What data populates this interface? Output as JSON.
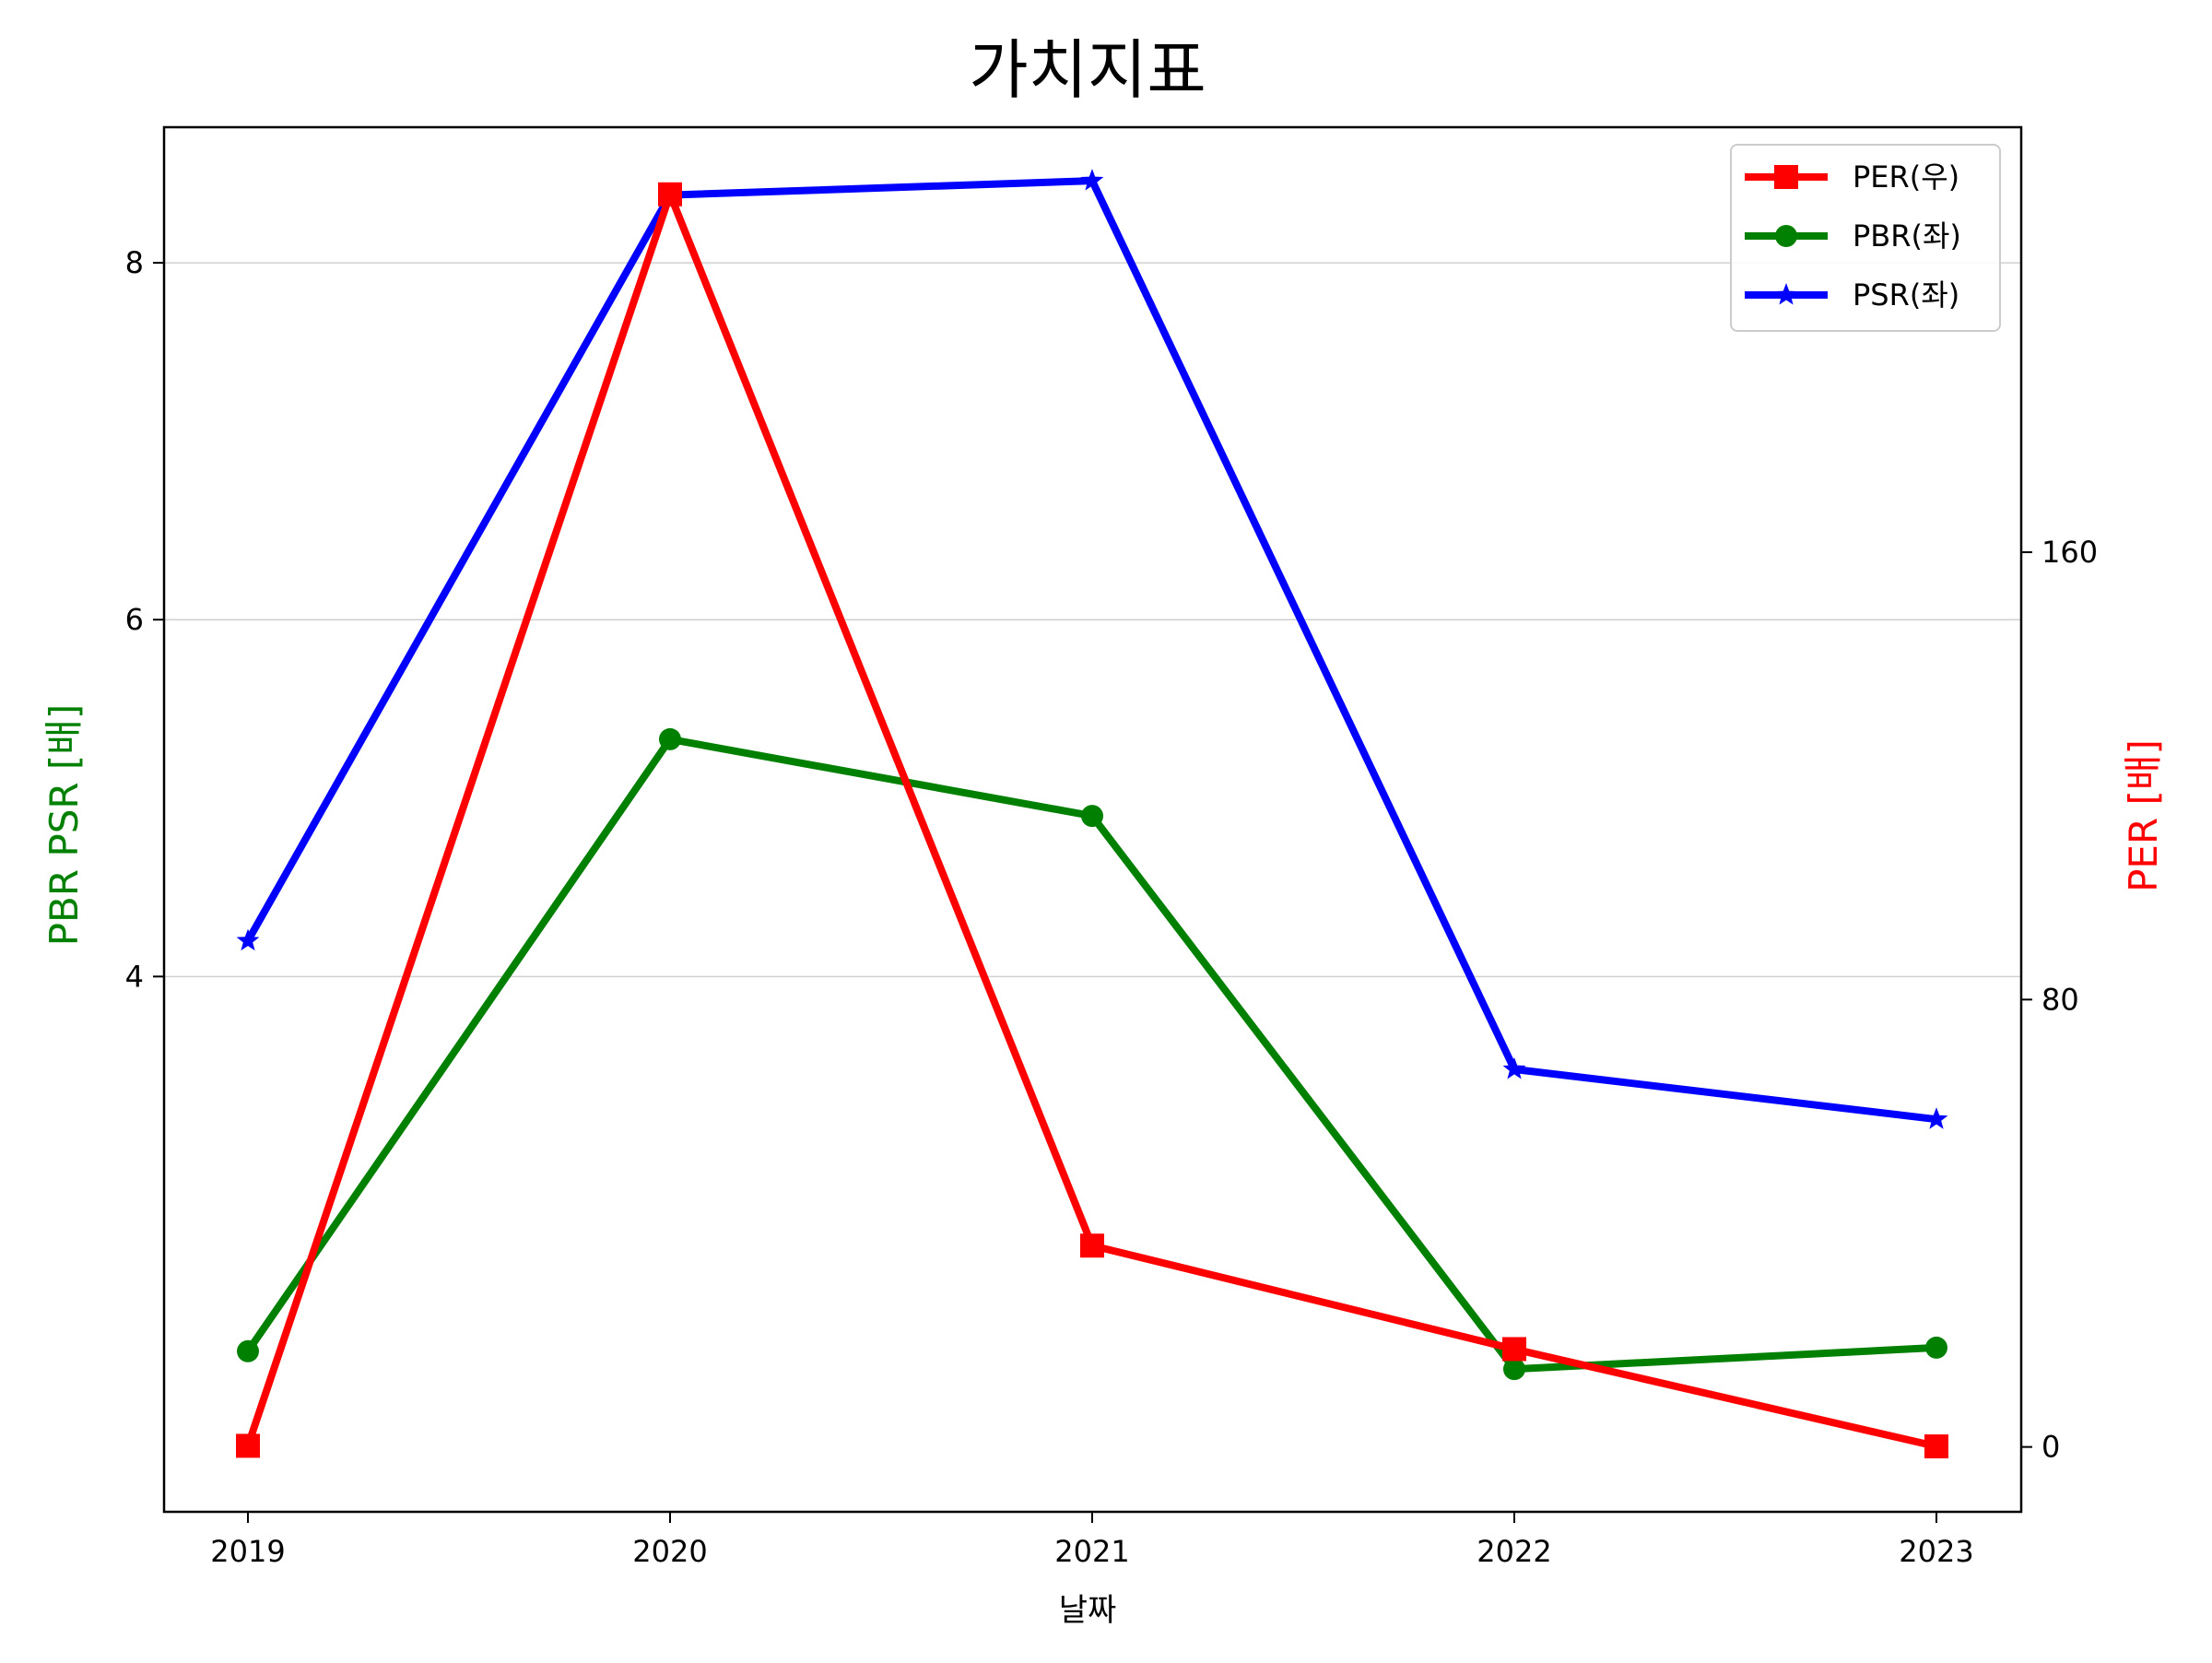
{
  "chart_data": {
    "type": "line",
    "title": "가치지표",
    "xlabel": "날짜",
    "ylabel_left": "PBR PSR [배]",
    "ylabel_right": "PER [배]",
    "categories": [
      "2019",
      "2020",
      "2021",
      "2022",
      "2023"
    ],
    "y_left": {
      "ticks": [
        4,
        6,
        8
      ],
      "lim": [
        1.0,
        8.76
      ]
    },
    "y_right": {
      "ticks": [
        0,
        80,
        160
      ],
      "lim": [
        -11.6,
        236
      ]
    },
    "grid": "horizontal, left axis",
    "legend_position": "top-right",
    "series": [
      {
        "name": "PER(우)",
        "axis": "right",
        "color": "#ff0000",
        "marker": "square",
        "values": [
          0.2,
          224.0,
          36.0,
          17.5,
          0.1
        ]
      },
      {
        "name": "PBR(좌)",
        "axis": "left",
        "color": "#008000",
        "marker": "circle",
        "values": [
          1.9,
          5.33,
          4.9,
          1.8,
          1.92
        ]
      },
      {
        "name": "PSR(좌)",
        "axis": "left",
        "color": "#0000ff",
        "marker": "star",
        "values": [
          4.2,
          8.38,
          8.46,
          3.48,
          3.2
        ]
      }
    ],
    "colors": {
      "left_label": "#008000",
      "right_label": "#ff0000",
      "axis": "#000000",
      "grid": "#d0d0d0"
    }
  }
}
